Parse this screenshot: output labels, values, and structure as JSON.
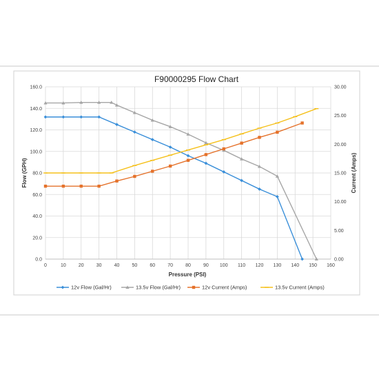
{
  "chart_data": {
    "type": "line",
    "title": "F90000295  Flow Chart",
    "xlabel": "Pressure (PSI)",
    "ylabel": "Flow (GPH)",
    "y2label": "Current (Amps)",
    "xlim": [
      0,
      160
    ],
    "ylim": [
      0,
      160
    ],
    "y2lim": [
      0,
      30
    ],
    "xticks": [
      "0",
      "10",
      "20",
      "30",
      "40",
      "50",
      "60",
      "70",
      "80",
      "90",
      "100",
      "110",
      "120",
      "130",
      "140",
      "150",
      "160"
    ],
    "yticks": [
      "0.0",
      "20.0",
      "40.0",
      "60.0",
      "80.0",
      "100.0",
      "120.0",
      "140.0",
      "160.0"
    ],
    "y2ticks": [
      "0.00",
      "5.00",
      "10.00",
      "15.00",
      "20.00",
      "25.00",
      "30.00"
    ],
    "grid": true,
    "legend_position": "bottom",
    "series": [
      {
        "name": "12v Flow (Gal/Hr)",
        "axis": "left",
        "color": "#3a8fd9",
        "marker": "diamond",
        "x": [
          0,
          10,
          20,
          30,
          40,
          50,
          60,
          70,
          80,
          90,
          100,
          110,
          120,
          130,
          144
        ],
        "values": [
          132,
          132,
          132,
          132,
          125,
          118,
          111,
          104,
          96,
          89,
          81,
          73,
          65,
          58,
          0
        ]
      },
      {
        "name": "13.5v Flow (Gal/Hr)",
        "axis": "left",
        "color": "#a6a6a6",
        "marker": "triangle",
        "x": [
          0,
          10,
          20,
          30,
          37,
          40,
          50,
          60,
          70,
          80,
          90,
          100,
          110,
          120,
          130,
          152
        ],
        "values": [
          145,
          145,
          145.5,
          145.5,
          145.5,
          143,
          136,
          129,
          123,
          116,
          108,
          101,
          93,
          86,
          77,
          0
        ]
      },
      {
        "name": "12v Current (Amps)",
        "axis": "right",
        "color": "#e5722b",
        "marker": "square",
        "x": [
          0,
          10,
          20,
          30,
          40,
          50,
          60,
          70,
          80,
          90,
          100,
          110,
          120,
          130,
          144
        ],
        "values": [
          12.7,
          12.7,
          12.7,
          12.7,
          13.6,
          14.4,
          15.3,
          16.2,
          17.2,
          18.2,
          19.2,
          20.2,
          21.2,
          22.1,
          23.7
        ]
      },
      {
        "name": "13.5v Current (Amps)",
        "axis": "right",
        "color": "#f5c01a",
        "marker": "dash",
        "x": [
          0,
          10,
          20,
          30,
          37,
          50,
          60,
          70,
          80,
          90,
          100,
          110,
          120,
          130,
          140,
          152
        ],
        "values": [
          15,
          15,
          15,
          15,
          15,
          16.3,
          17.2,
          18.1,
          19,
          19.9,
          20.8,
          21.8,
          22.8,
          23.7,
          24.8,
          26.2
        ]
      }
    ]
  }
}
